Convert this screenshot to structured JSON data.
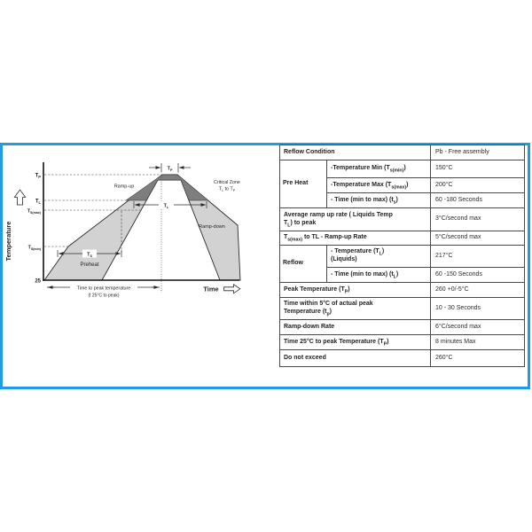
{
  "colors": {
    "frame_border": "#219BE4",
    "band_fill": "#d2d2d2",
    "critical_zone_fill": "#7e7e7e"
  },
  "chart": {
    "y_axis_label": "Temperature",
    "x_axis_label": "Time",
    "ticks": {
      "tp": "T~P~",
      "tl": "T~L~",
      "tsmax": "T~S(max)~",
      "tsmin": "T~S(min)~",
      "t25": "25"
    },
    "labels": {
      "ramp_up": "Ramp-up",
      "ramp_down": "Ramp-down",
      "preheat": "Preheat",
      "critical_zone_line1": "Critical Zone",
      "critical_zone_line2": "T~L~ to T~P~",
      "tp_bracket": "T~P~",
      "tl_bracket": "T~L~",
      "ts_bracket": "T~S~",
      "time_to_peak_line1": "Time to peak temperature",
      "time_to_peak_line2": "(t 25°C to peak)"
    }
  },
  "table": {
    "header": {
      "label": "Reflow Condition",
      "value": "Pb - Free assembly"
    },
    "groups": {
      "preheat": "Pre Heat",
      "reflow": "Reflow"
    },
    "rows": {
      "preheat_temp_min": {
        "label": "-Temperature Min (T~s(min)~)",
        "value": "150°C"
      },
      "preheat_temp_max": {
        "label": "-Temperature Max (T~s(max)~)",
        "value": "200°C"
      },
      "preheat_time": {
        "label": "- Time (min to max) (t~s~)",
        "value": "60 -180 Seconds"
      },
      "avg_ramp_up": {
        "label": "Average ramp up rate ( Liquids Temp\nT~L~) to peak",
        "value": "3°C/second max"
      },
      "ramp_up_rate": {
        "label": "T~s(max)~ to TL - Ramp-up Rate",
        "value": "5°C/second max"
      },
      "reflow_temp": {
        "label": "- Temperature (T~L~)\n(Liquids)",
        "value": "217°C"
      },
      "reflow_time": {
        "label": "- Time (min to max) (t~L~)",
        "value": "60 -150 Seconds"
      },
      "peak_temp": {
        "label": "Peak Temperature (T~P~)",
        "value": "260 +0/-5°C"
      },
      "time_within_peak": {
        "label": "Time within 5°C of actual peak\nTemperature (t~p~)",
        "value": "10 - 30 Seconds"
      },
      "ramp_down_rate": {
        "label": "Ramp-down Rate",
        "value": "6°C/second max"
      },
      "time_25_to_peak": {
        "label": "Time 25°C to peak Temperature (T~P~)",
        "value": "8 minutes Max"
      },
      "do_not_exceed": {
        "label": "Do not exceed",
        "value": "260°C"
      }
    }
  }
}
